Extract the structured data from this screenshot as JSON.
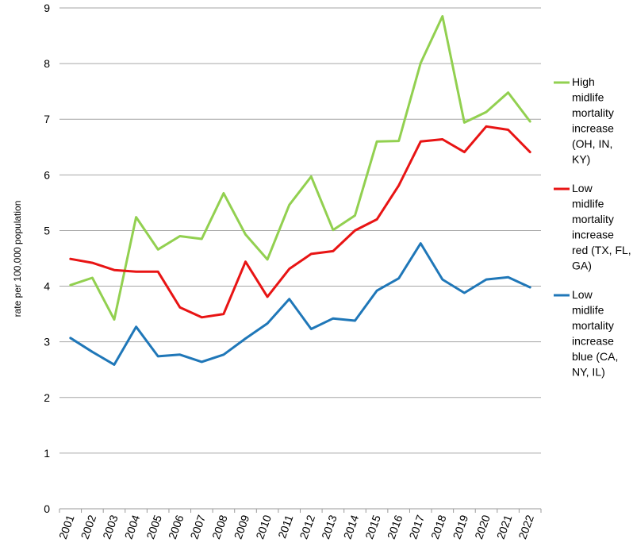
{
  "chart_data": {
    "type": "line",
    "ylabel": "rate per 100,000 population",
    "xlabel": "",
    "ylim": [
      0,
      9
    ],
    "yticks": [
      0,
      1,
      2,
      3,
      4,
      5,
      6,
      7,
      8,
      9
    ],
    "grid": true,
    "legend_position": "right",
    "categories": [
      "2001",
      "2002",
      "2003",
      "2004",
      "2005",
      "2006",
      "2007",
      "2008",
      "2009",
      "2010",
      "2011",
      "2012",
      "2013",
      "2014",
      "2015",
      "2016",
      "2017",
      "2018",
      "2019",
      "2020",
      "2021",
      "2022"
    ],
    "series": [
      {
        "name": "High midlife mortality increase (OH, IN, KY)",
        "legend_lines": [
          "High",
          "midlife",
          "mortality",
          "increase",
          "(OH, IN,",
          "KY)"
        ],
        "color": "#92D050",
        "values": [
          4.02,
          4.15,
          3.4,
          5.24,
          4.66,
          4.9,
          4.85,
          5.67,
          4.93,
          4.48,
          5.46,
          5.97,
          5.01,
          5.27,
          6.6,
          6.61,
          8.01,
          8.85,
          6.94,
          7.13,
          7.48,
          6.96
        ]
      },
      {
        "name": "Low midlife mortality increase red (TX, FL, GA)",
        "legend_lines": [
          "Low",
          "midlife",
          "mortality",
          "increase",
          "red (TX, FL,",
          "GA)"
        ],
        "color": "#E81414",
        "values": [
          4.49,
          4.42,
          4.29,
          4.26,
          4.26,
          3.62,
          3.44,
          3.5,
          4.44,
          3.81,
          4.31,
          4.58,
          4.63,
          5.0,
          5.2,
          5.81,
          6.6,
          6.64,
          6.41,
          6.87,
          6.81,
          6.41
        ]
      },
      {
        "name": "Low midlife mortality increase blue (CA, NY, IL)",
        "legend_lines": [
          "Low",
          "midlife",
          "mortality",
          "increase",
          "blue (CA,",
          "NY, IL)"
        ],
        "color": "#1F77B8",
        "values": [
          3.07,
          2.82,
          2.59,
          3.27,
          2.74,
          2.77,
          2.64,
          2.77,
          3.06,
          3.33,
          3.77,
          3.23,
          3.42,
          3.38,
          3.92,
          4.14,
          4.77,
          4.12,
          3.88,
          4.12,
          4.16,
          3.98
        ]
      }
    ]
  }
}
